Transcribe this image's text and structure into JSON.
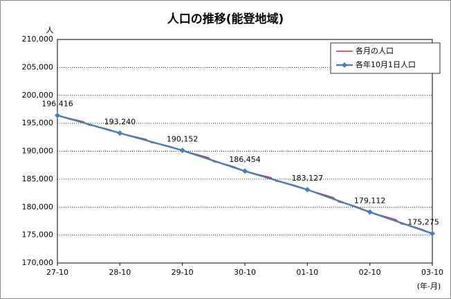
{
  "chart_data": {
    "type": "line",
    "title": "人口の推移(能登地域)",
    "y_label": "人",
    "x_label": "(年-月)",
    "categories": [
      "27-10",
      null,
      null,
      null,
      null,
      null,
      null,
      null,
      null,
      null,
      null,
      null,
      "28-10",
      null,
      null,
      null,
      null,
      null,
      null,
      null,
      null,
      null,
      null,
      null,
      "29-10",
      null,
      null,
      null,
      null,
      null,
      null,
      null,
      null,
      null,
      null,
      null,
      "30-10",
      null,
      null,
      null,
      null,
      null,
      null,
      null,
      null,
      null,
      null,
      null,
      "01-10",
      null,
      null,
      null,
      null,
      null,
      null,
      null,
      null,
      null,
      null,
      null,
      "02-10",
      null,
      null,
      null,
      null,
      null,
      null,
      null,
      null,
      null,
      null,
      null,
      "03-10"
    ],
    "series": [
      {
        "name": "各月の人口",
        "color": "#e8202a",
        "values": [
          196416,
          196194,
          195971,
          195749,
          195527,
          195304,
          194669,
          194510,
          194352,
          194129,
          193875,
          193558,
          193240,
          193024,
          192808,
          192592,
          192375,
          192159,
          191542,
          191387,
          191233,
          191017,
          190770,
          190461,
          190152,
          189893,
          189634,
          189375,
          189117,
          188858,
          188118,
          187933,
          187748,
          187489,
          187194,
          186824,
          186454,
          186221,
          185988,
          185755,
          185522,
          185290,
          184624,
          184458,
          184291,
          184058,
          183792,
          183460,
          183127,
          182846,
          182565,
          182284,
          182003,
          181722,
          180919,
          180718,
          180517,
          180236,
          179915,
          179514,
          179112,
          178843,
          178575,
          178306,
          178038,
          177769,
          177002,
          176810,
          176618,
          176349,
          176042,
          175659,
          175275
        ]
      },
      {
        "name": "各年10月1日人口",
        "color": "#4a7ebb",
        "marker": "diamond",
        "values": [
          196416,
          null,
          null,
          null,
          null,
          null,
          null,
          null,
          null,
          null,
          null,
          null,
          193240,
          null,
          null,
          null,
          null,
          null,
          null,
          null,
          null,
          null,
          null,
          null,
          190152,
          null,
          null,
          null,
          null,
          null,
          null,
          null,
          null,
          null,
          null,
          null,
          186454,
          null,
          null,
          null,
          null,
          null,
          null,
          null,
          null,
          null,
          null,
          null,
          183127,
          null,
          null,
          null,
          null,
          null,
          null,
          null,
          null,
          null,
          null,
          null,
          179112,
          null,
          null,
          null,
          null,
          null,
          null,
          null,
          null,
          null,
          null,
          null,
          175275
        ],
        "value_labels": [
          "196,416",
          null,
          null,
          null,
          null,
          null,
          null,
          null,
          null,
          null,
          null,
          null,
          "193,240",
          null,
          null,
          null,
          null,
          null,
          null,
          null,
          null,
          null,
          null,
          null,
          "190,152",
          null,
          null,
          null,
          null,
          null,
          null,
          null,
          null,
          null,
          null,
          null,
          "186,454",
          null,
          null,
          null,
          null,
          null,
          null,
          null,
          null,
          null,
          null,
          null,
          "183,127",
          null,
          null,
          null,
          null,
          null,
          null,
          null,
          null,
          null,
          null,
          null,
          "179,112",
          null,
          null,
          null,
          null,
          null,
          null,
          null,
          null,
          null,
          null,
          null,
          "175,275"
        ]
      }
    ],
    "ylim": [
      170000,
      210000
    ],
    "yticks": [
      {
        "value": 170000,
        "label": "170,000"
      },
      {
        "value": 175000,
        "label": "175,000"
      },
      {
        "value": 180000,
        "label": "180,000"
      },
      {
        "value": 185000,
        "label": "185,000"
      },
      {
        "value": 190000,
        "label": "190,000"
      },
      {
        "value": 195000,
        "label": "195,000"
      },
      {
        "value": 200000,
        "label": "200,000"
      },
      {
        "value": 205000,
        "label": "205,000"
      },
      {
        "value": 210000,
        "label": "210,000"
      }
    ],
    "grid": true,
    "legend": "upper right"
  }
}
